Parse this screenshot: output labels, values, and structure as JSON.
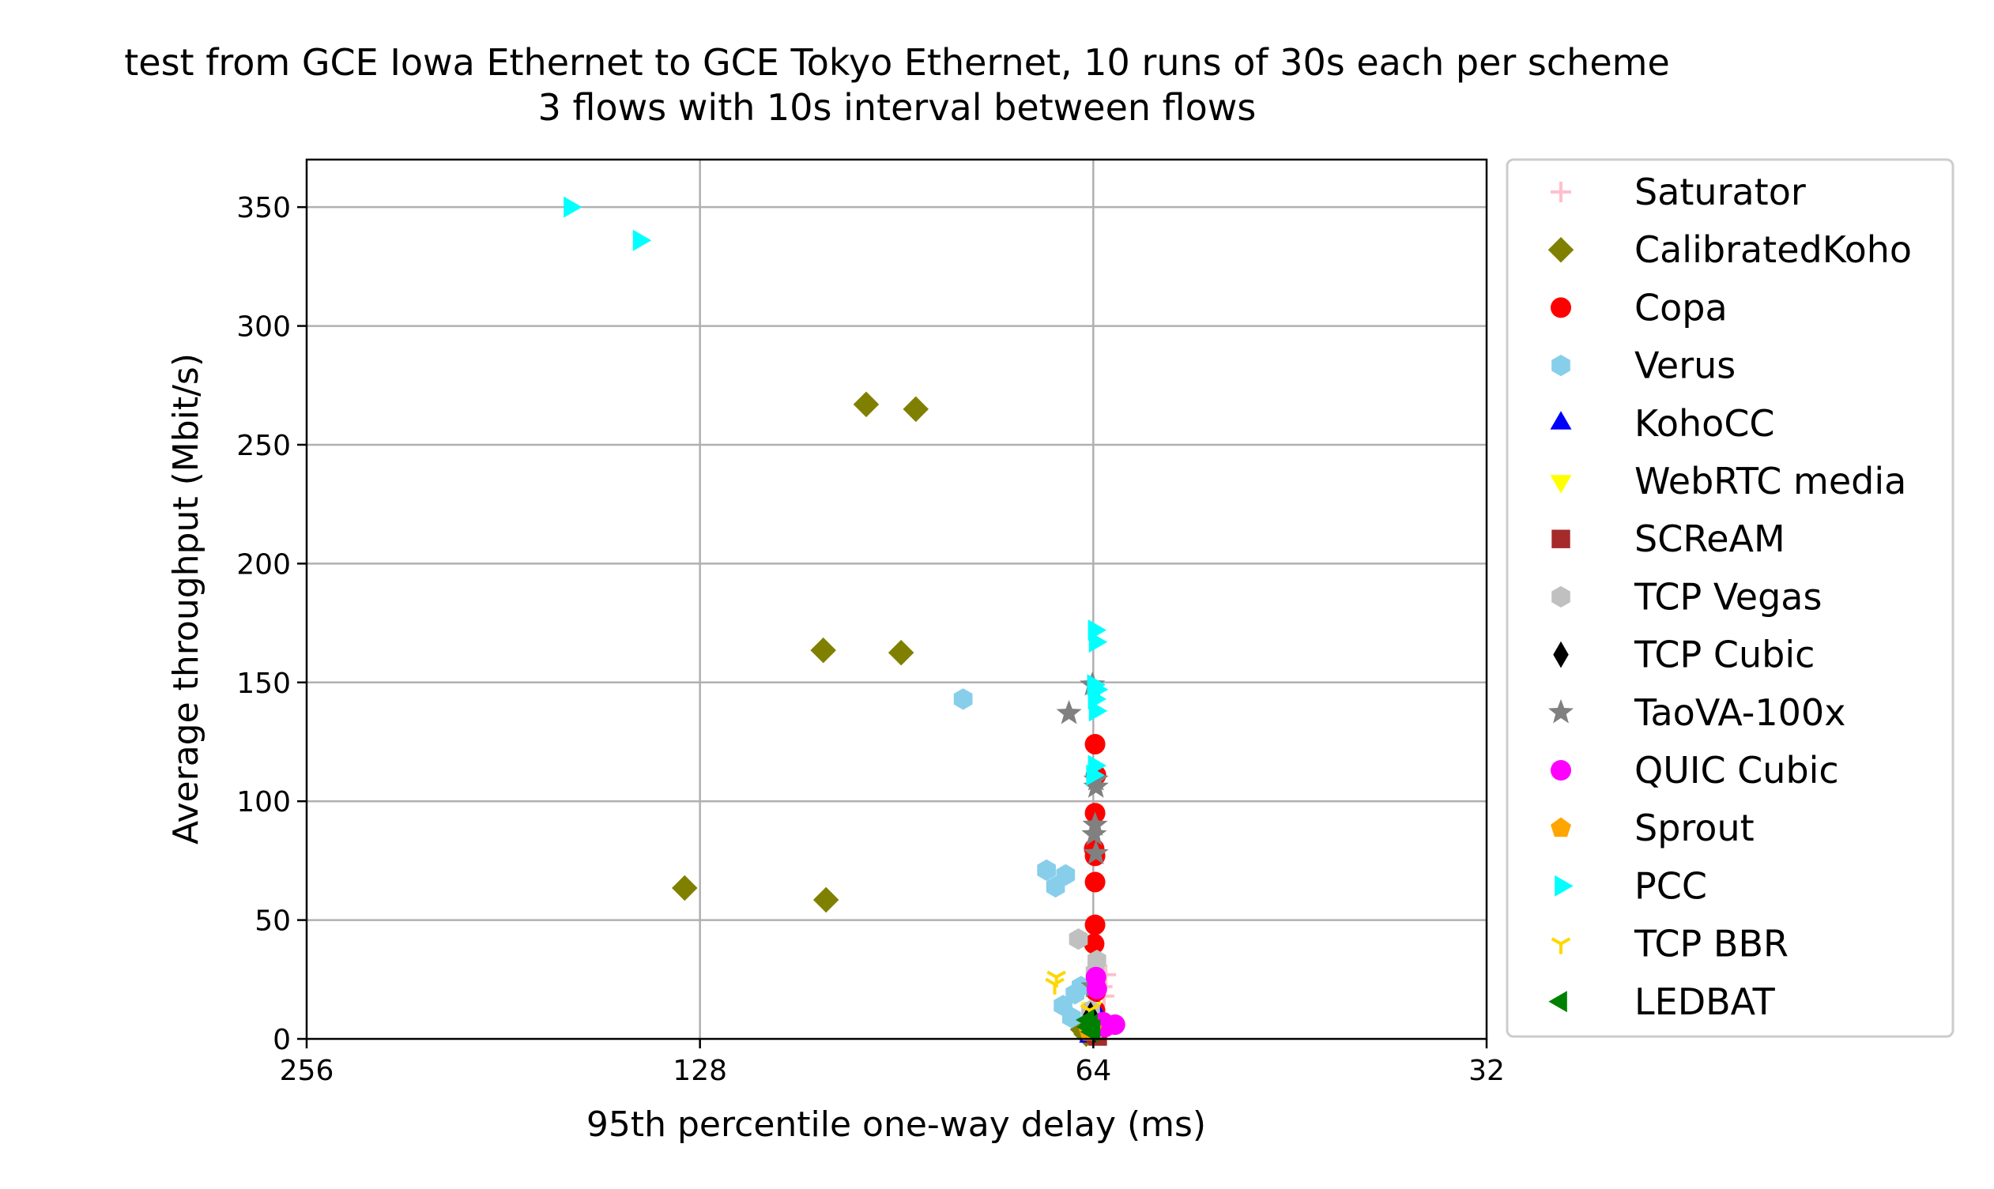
{
  "chart_data": {
    "type": "scatter",
    "title": "test from GCE Iowa Ethernet to GCE Tokyo Ethernet, 10 runs of 30s each per scheme",
    "subtitle": "3 flows with 10s interval between flows",
    "xlabel": "95th percentile one-way delay (ms)",
    "ylabel": "Average throughput (Mbit/s)",
    "x_scale": "log2",
    "x_inverted": true,
    "xlim": [
      256,
      32
    ],
    "ylim": [
      0,
      370
    ],
    "x_ticks": [
      256,
      128,
      64,
      32
    ],
    "x_tick_labels": [
      "256",
      "128",
      "64",
      "32"
    ],
    "y_ticks": [
      0,
      50,
      100,
      150,
      200,
      250,
      300,
      350
    ],
    "y_tick_labels": [
      "0",
      "50",
      "100",
      "150",
      "200",
      "250",
      "300",
      "350"
    ],
    "grid": true,
    "legend_position": "outside-right",
    "series": [
      {
        "name": "Saturator",
        "marker": "plus",
        "color": "#ffc0cb",
        "points": [
          [
            62.6,
            27
          ],
          [
            63.0,
            22
          ],
          [
            62.8,
            18
          ]
        ]
      },
      {
        "name": "CalibratedKoho",
        "marker": "diamond",
        "color": "#808000",
        "points": [
          [
            95.5,
            267
          ],
          [
            87.5,
            265
          ],
          [
            103,
            163.5
          ],
          [
            89.8,
            162.5
          ],
          [
            131.5,
            63.5
          ],
          [
            102.5,
            58.5
          ],
          [
            65.2,
            4
          ],
          [
            64.8,
            2
          ]
        ]
      },
      {
        "name": "Copa",
        "marker": "circle",
        "color": "#ff0000",
        "points": [
          [
            63.8,
            124
          ],
          [
            63.7,
            111
          ],
          [
            63.8,
            95
          ],
          [
            63.9,
            80
          ],
          [
            63.8,
            77
          ],
          [
            63.8,
            66
          ],
          [
            63.8,
            48
          ],
          [
            63.9,
            40
          ],
          [
            63.7,
            20
          ],
          [
            63.8,
            12
          ]
        ]
      },
      {
        "name": "Verus",
        "marker": "hexagon",
        "color": "#87ceeb",
        "points": [
          [
            80.5,
            143
          ],
          [
            69.5,
            71
          ],
          [
            67.2,
            69
          ],
          [
            68.4,
            64
          ],
          [
            67.5,
            14
          ],
          [
            66.1,
            19
          ],
          [
            65.4,
            22
          ],
          [
            66.5,
            9
          ]
        ]
      },
      {
        "name": "KohoCC",
        "marker": "triangle-up",
        "color": "#0000ff",
        "points": [
          [
            64.4,
            1
          ],
          [
            63.6,
            11
          ],
          [
            63.9,
            7
          ]
        ]
      },
      {
        "name": "WebRTC media",
        "marker": "triangle-down",
        "color": "#ffff00",
        "points": [
          [
            64.2,
            13
          ],
          [
            64.0,
            6
          ]
        ]
      },
      {
        "name": "SCReAM",
        "marker": "square",
        "color": "#a52a2a",
        "points": [
          [
            63.7,
            2
          ],
          [
            63.5,
            1
          ],
          [
            64.0,
            3
          ]
        ]
      },
      {
        "name": "TCP Vegas",
        "marker": "hexagon",
        "color": "#c0c0c0",
        "points": [
          [
            65.7,
            42
          ],
          [
            63.6,
            33
          ],
          [
            63.8,
            28
          ],
          [
            64.3,
            12
          ],
          [
            63.6,
            4
          ]
        ]
      },
      {
        "name": "TCP Cubic",
        "marker": "thin-diamond",
        "color": "#000000",
        "points": [
          [
            64.3,
            10
          ],
          [
            64.0,
            6
          ],
          [
            63.8,
            4
          ]
        ]
      },
      {
        "name": "TaoVA-100x",
        "marker": "star",
        "color": "#808080",
        "points": [
          [
            66.8,
            137
          ],
          [
            64.1,
            149
          ],
          [
            63.7,
            109
          ],
          [
            63.7,
            106
          ],
          [
            63.8,
            90
          ],
          [
            63.9,
            86
          ],
          [
            63.7,
            78
          ],
          [
            64.0,
            22
          ]
        ]
      },
      {
        "name": "QUIC Cubic",
        "marker": "circle",
        "color": "#ff00ff",
        "points": [
          [
            63.7,
            26
          ],
          [
            63.6,
            21
          ],
          [
            62.9,
            7
          ],
          [
            61.6,
            6
          ],
          [
            62.7,
            5
          ]
        ]
      },
      {
        "name": "Sprout",
        "marker": "pentagon",
        "color": "#ffa500",
        "points": [
          [
            64.5,
            3
          ],
          [
            64.2,
            4
          ]
        ]
      },
      {
        "name": "PCC",
        "marker": "triangle-right",
        "color": "#00ffff",
        "points": [
          [
            161,
            350
          ],
          [
            142.5,
            336
          ],
          [
            63.9,
            172
          ],
          [
            63.8,
            167
          ],
          [
            64.0,
            149
          ],
          [
            63.7,
            147
          ],
          [
            63.9,
            143
          ],
          [
            63.8,
            138
          ],
          [
            63.9,
            115
          ],
          [
            64.1,
            111
          ]
        ]
      },
      {
        "name": "TCP BBR",
        "marker": "tri-down",
        "color": "#ffd700",
        "points": [
          [
            68.3,
            26
          ],
          [
            68.5,
            23
          ],
          [
            64.4,
            12
          ]
        ]
      },
      {
        "name": "LEDBAT",
        "marker": "triangle-left",
        "color": "#008000",
        "points": [
          [
            64.6,
            8
          ],
          [
            64.2,
            6
          ],
          [
            64.5,
            5
          ],
          [
            63.9,
            4
          ],
          [
            64.1,
            3
          ]
        ]
      }
    ]
  }
}
